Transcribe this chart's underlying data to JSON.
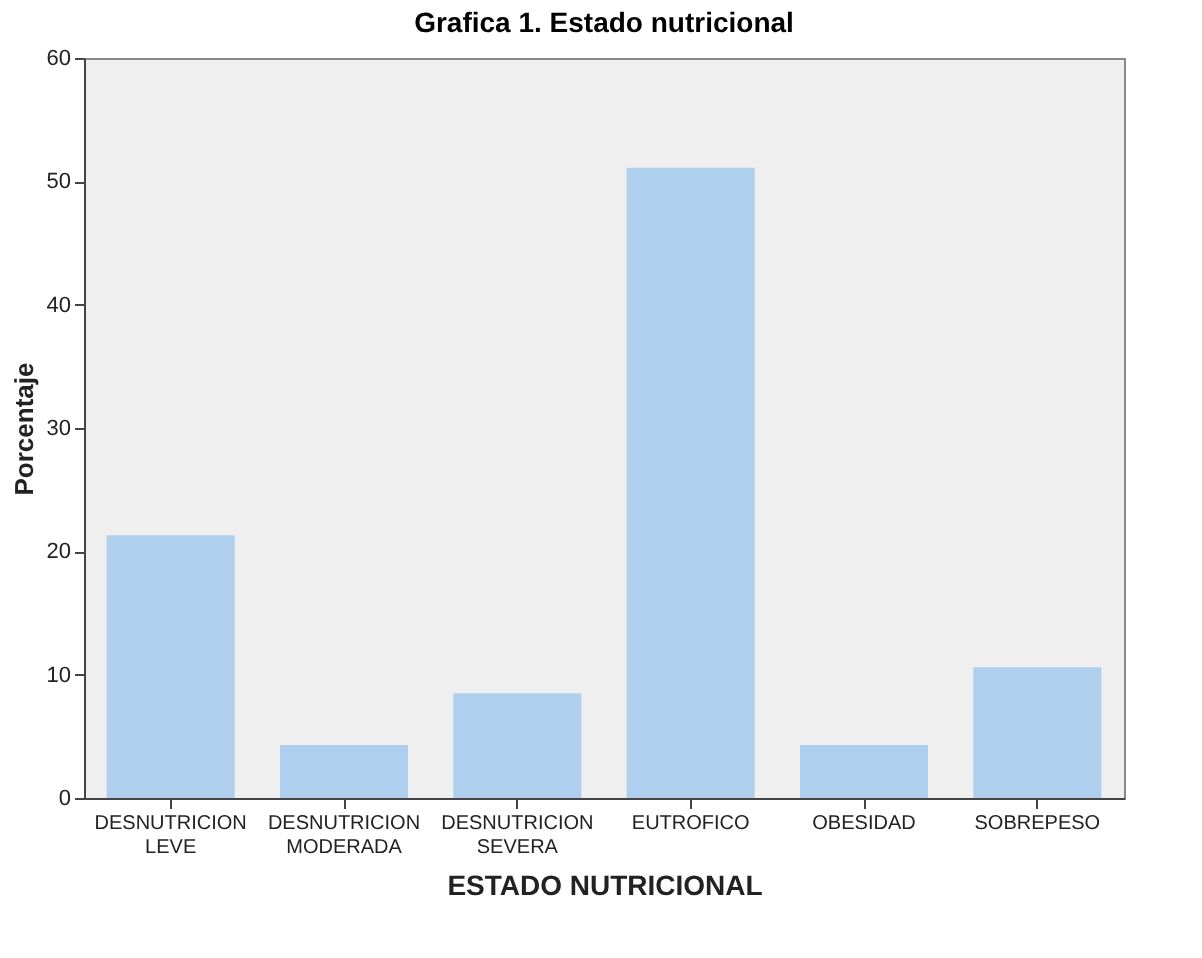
{
  "chart_data": {
    "type": "bar",
    "title": "Grafica 1. Estado  nutricional",
    "xlabel": "ESTADO NUTRICIONAL",
    "ylabel": "Porcentaje",
    "categories": [
      "DESNUTRICION LEVE",
      "DESNUTRICION MODERADA",
      "DESNUTRICION SEVERA",
      "EUTROFICO",
      "OBESIDAD",
      "SOBREPESO"
    ],
    "values": [
      21.3,
      4.3,
      8.5,
      51.1,
      4.3,
      10.6
    ],
    "color": "#aecfee",
    "ylim": [
      0,
      60
    ],
    "yticks": [
      0,
      10,
      20,
      30,
      40,
      50,
      60
    ],
    "grid": false
  }
}
